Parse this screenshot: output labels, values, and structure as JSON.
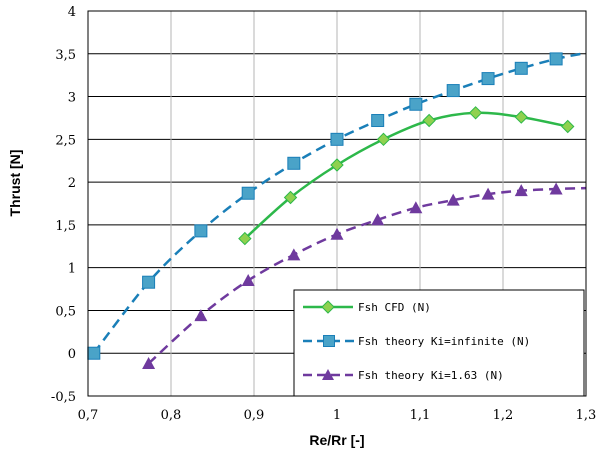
{
  "chart_data": {
    "type": "line",
    "xlabel": "Re/Rr [-]",
    "ylabel": "Thrust [N]",
    "xlim": [
      0.7,
      1.3
    ],
    "ylim": [
      -0.5,
      4
    ],
    "x_ticks": [
      0.7,
      0.8,
      0.9,
      1.0,
      1.1,
      1.2,
      1.3
    ],
    "x_tick_labels": [
      "0,7",
      "0,8",
      "0,9",
      "1",
      "1,1",
      "1,2",
      "1,3"
    ],
    "y_ticks": [
      -0.5,
      0,
      0.5,
      1,
      1.5,
      2,
      2.5,
      3,
      3.5,
      4
    ],
    "y_tick_labels": [
      "-0,5",
      "0",
      "0,5",
      "1",
      "1,5",
      "2",
      "2,5",
      "3",
      "3,5",
      "4"
    ],
    "grid": "horizontal and vertical",
    "legend_position": "bottom-right",
    "series": [
      {
        "name": "Fsh CFD (N)",
        "color": "#2db84a",
        "marker": "diamond",
        "line_style": "solid",
        "x": [
          0.889,
          0.944,
          1.0,
          1.056,
          1.111,
          1.167,
          1.222,
          1.278
        ],
        "y": [
          1.34,
          1.82,
          2.2,
          2.5,
          2.72,
          2.81,
          2.76,
          2.65
        ]
      },
      {
        "name": "Fsh theory Ki=infinite (N)",
        "color": "#1a7fb8",
        "marker": "square",
        "line_style": "dashed",
        "x": [
          0.707,
          0.773,
          0.836,
          0.893,
          0.948,
          1.0,
          1.049,
          1.095,
          1.14,
          1.182,
          1.222,
          1.264,
          1.3
        ],
        "y": [
          0.0,
          0.83,
          1.43,
          1.87,
          2.22,
          2.5,
          2.72,
          2.91,
          3.07,
          3.21,
          3.33,
          3.44,
          3.51
        ],
        "marker_x": [
          0.707,
          0.773,
          0.836,
          0.893,
          0.948,
          1.0,
          1.049,
          1.095,
          1.14,
          1.182,
          1.222,
          1.264
        ],
        "marker_y": [
          0.0,
          0.83,
          1.43,
          1.87,
          2.22,
          2.5,
          2.72,
          2.91,
          3.07,
          3.21,
          3.33,
          3.44
        ]
      },
      {
        "name": "Fsh theory Ki=1.63 (N)",
        "color": "#6f3a9e",
        "marker": "triangle",
        "line_style": "dashed",
        "x": [
          0.773,
          0.836,
          0.893,
          0.948,
          1.0,
          1.049,
          1.095,
          1.14,
          1.182,
          1.222,
          1.264,
          1.3
        ],
        "y": [
          -0.12,
          0.44,
          0.85,
          1.15,
          1.39,
          1.56,
          1.7,
          1.79,
          1.86,
          1.9,
          1.92,
          1.93
        ],
        "marker_x": [
          0.773,
          0.836,
          0.893,
          0.948,
          1.0,
          1.049,
          1.095,
          1.14,
          1.182,
          1.222,
          1.264
        ],
        "marker_y": [
          -0.12,
          0.44,
          0.85,
          1.15,
          1.39,
          1.56,
          1.7,
          1.79,
          1.86,
          1.9,
          1.92
        ]
      }
    ]
  }
}
